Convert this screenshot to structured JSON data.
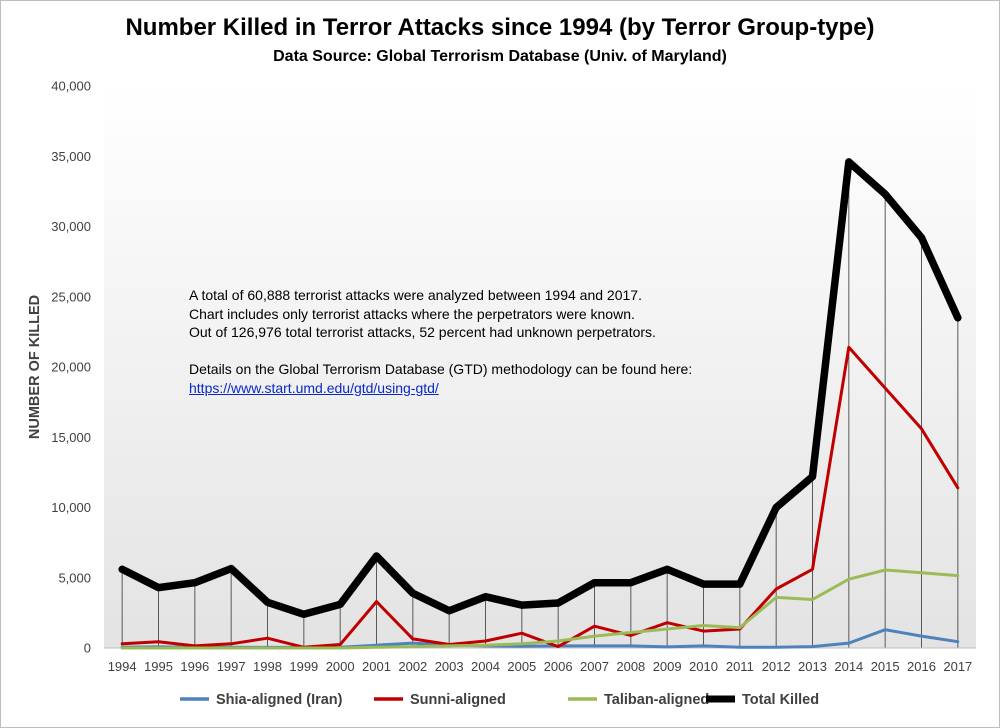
{
  "chart_data": {
    "type": "line",
    "title": "Number Killed in Terror Attacks since 1994 (by Terror Group-type)",
    "subtitle": "Data Source: Global Terrorism Database (Univ. of Maryland)",
    "xlabel": "",
    "ylabel": "NUMBER OF KILLED",
    "ylim": [
      0,
      40000
    ],
    "yticks": [
      0,
      5000,
      10000,
      15000,
      20000,
      25000,
      30000,
      35000,
      40000
    ],
    "ytick_labels": [
      "0",
      "5,000",
      "10,000",
      "15,000",
      "20,000",
      "25,000",
      "30,000",
      "35,000",
      "40,000"
    ],
    "grid": "vertical drop lines at each year",
    "legend_position": "bottom",
    "categories": [
      "1994",
      "1995",
      "1996",
      "1997",
      "1998",
      "1999",
      "2000",
      "2001",
      "2002",
      "2003",
      "2004",
      "2005",
      "2006",
      "2007",
      "2008",
      "2009",
      "2010",
      "2011",
      "2012",
      "2013",
      "2014",
      "2015",
      "2016",
      "2017"
    ],
    "series": [
      {
        "name": "Shia-aligned (Iran)",
        "color": "#4f81bd",
        "values": [
          60,
          80,
          60,
          50,
          40,
          40,
          50,
          200,
          350,
          200,
          150,
          120,
          150,
          150,
          150,
          80,
          150,
          60,
          50,
          100,
          350,
          1300,
          850,
          450
        ]
      },
      {
        "name": "Sunni-aligned",
        "color": "#c00000",
        "values": [
          300,
          450,
          150,
          300,
          700,
          50,
          250,
          3300,
          650,
          250,
          500,
          1050,
          100,
          1550,
          900,
          1800,
          1200,
          1350,
          4200,
          5600,
          21400,
          18500,
          15600,
          11400
        ]
      },
      {
        "name": "Taliban-aligned",
        "color": "#9bbb59",
        "values": [
          0,
          0,
          0,
          0,
          0,
          0,
          0,
          50,
          100,
          150,
          200,
          300,
          500,
          850,
          1100,
          1350,
          1600,
          1450,
          3600,
          3450,
          4900,
          5550,
          5350,
          5150
        ]
      },
      {
        "name": "Total Killed",
        "color": "#000000",
        "values": [
          5600,
          4300,
          4650,
          5650,
          3250,
          2400,
          3100,
          6550,
          3900,
          2650,
          3650,
          3050,
          3200,
          4650,
          4650,
          5600,
          4550,
          4550,
          10000,
          12200,
          34600,
          32300,
          29200,
          23500
        ]
      }
    ],
    "annotation": {
      "lines": [
        "A total of 60,888 terrorist attacks were analyzed between 1994 and 2017.",
        "Chart includes only terrorist attacks where the perpetrators were known.",
        "Out of 126,976 total terrorist attacks, 52 percent had unknown perpetrators."
      ],
      "details": "Details on the Global Terrorism Database (GTD) methodology can be found here:",
      "link": "https://www.start.umd.edu/gtd/using-gtd/"
    }
  }
}
